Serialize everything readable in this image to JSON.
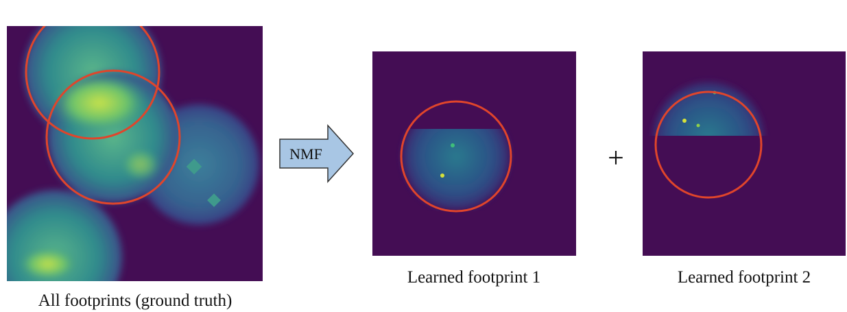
{
  "arrow": {
    "label": "NMF"
  },
  "operator": "+",
  "panels": [
    {
      "caption": "All footprints (ground truth)"
    },
    {
      "caption": "Learned footprint 1"
    },
    {
      "caption": "Learned footprint 2"
    }
  ]
}
